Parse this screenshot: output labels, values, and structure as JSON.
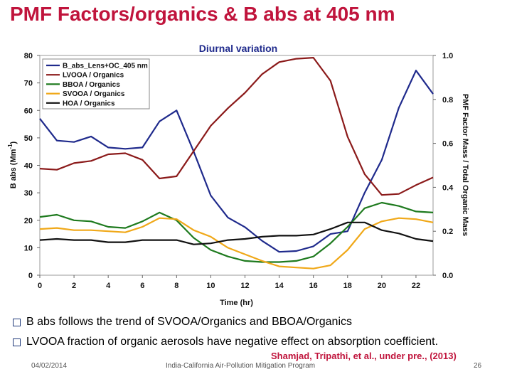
{
  "slide": {
    "title": "PMF Factors/organics & B abs at 405 nm",
    "bullets": [
      "B abs follows the trend of SVOOA/Organics and BBOA/Organics",
      "LVOOA fraction of organic aerosols have negative effect on absorption coefficient."
    ],
    "credit": "Shamjad, Tripathi, et al., under pre., (2013)",
    "footer_date": "04/02/2014",
    "footer_program": "India-California Air-Pollution Mitigation Program",
    "page_number": "26"
  },
  "chart_data": {
    "type": "line",
    "title": "Diurnal variation",
    "xlabel": "Time (hr)",
    "ylabel": "B abs (Mm",
    "ylabel_sup": "-1",
    "ylabel_close": ")",
    "y2label": "PMF Factor Mass / Total Organic Mass",
    "xlim": [
      0,
      23
    ],
    "ylim": [
      0,
      80
    ],
    "y2lim": [
      0,
      1.0
    ],
    "x_ticks": [
      "0",
      "2",
      "4",
      "6",
      "8",
      "10",
      "12",
      "14",
      "16",
      "18",
      "20",
      "22"
    ],
    "y_ticks": [
      "0",
      "10",
      "20",
      "30",
      "40",
      "50",
      "60",
      "70",
      "80"
    ],
    "y2_ticks": [
      "0.0",
      "0.2",
      "0.4",
      "0.6",
      "0.8",
      "1.0"
    ],
    "x": [
      0,
      1,
      2,
      3,
      4,
      5,
      6,
      7,
      8,
      9,
      10,
      11,
      12,
      13,
      14,
      15,
      16,
      17,
      18,
      19,
      20,
      21,
      22,
      23
    ],
    "series": [
      {
        "name": "B_abs_Lens+OC_405 nm",
        "axis": "left",
        "color": "#1f2a8c",
        "values": [
          57,
          49,
          48.5,
          50.5,
          46.5,
          46,
          46.5,
          56,
          60,
          45,
          29,
          21,
          17.5,
          12.5,
          8.5,
          8.8,
          10.5,
          15,
          16,
          30,
          42,
          61,
          74.5,
          66
        ]
      },
      {
        "name": "LVOOA / Organics",
        "axis": "right",
        "color": "#8b1a1a",
        "values": [
          0.485,
          0.48,
          0.51,
          0.52,
          0.55,
          0.555,
          0.525,
          0.44,
          0.45,
          0.565,
          0.68,
          0.76,
          0.83,
          0.915,
          0.97,
          0.985,
          0.99,
          0.885,
          0.63,
          0.46,
          0.365,
          0.37,
          0.41,
          0.445
        ]
      },
      {
        "name": "BBOA / Organics",
        "axis": "right",
        "color": "#1e7a1e",
        "values": [
          0.265,
          0.275,
          0.25,
          0.245,
          0.22,
          0.215,
          0.245,
          0.285,
          0.25,
          0.17,
          0.115,
          0.085,
          0.065,
          0.06,
          0.06,
          0.065,
          0.085,
          0.145,
          0.22,
          0.305,
          0.33,
          0.315,
          0.29,
          0.285
        ]
      },
      {
        "name": "SVOOA / Organics",
        "axis": "right",
        "color": "#f0a818",
        "values": [
          0.21,
          0.215,
          0.205,
          0.205,
          0.2,
          0.195,
          0.22,
          0.26,
          0.255,
          0.205,
          0.175,
          0.125,
          0.095,
          0.065,
          0.04,
          0.035,
          0.03,
          0.045,
          0.115,
          0.21,
          0.245,
          0.26,
          0.255,
          0.24
        ]
      },
      {
        "name": "HOA / Organics",
        "axis": "right",
        "color": "#111111",
        "values": [
          0.16,
          0.165,
          0.16,
          0.16,
          0.15,
          0.15,
          0.16,
          0.16,
          0.16,
          0.14,
          0.145,
          0.16,
          0.165,
          0.175,
          0.18,
          0.18,
          0.185,
          0.21,
          0.24,
          0.24,
          0.205,
          0.19,
          0.165,
          0.155
        ]
      }
    ]
  }
}
